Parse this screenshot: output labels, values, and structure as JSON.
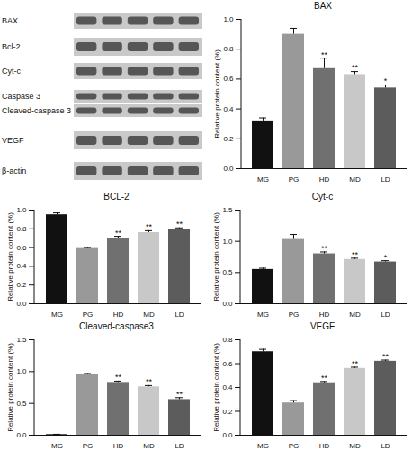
{
  "blot": {
    "labels": [
      "BAX",
      "Bcl-2",
      "Cyt-c",
      "Caspase 3",
      "Cleaved-caspase 3",
      "VEGF",
      "β-actin"
    ]
  },
  "chart_data": [
    {
      "type": "bar",
      "title": "BAX",
      "y_label": "Relative protein content (%)",
      "categories": [
        "MG",
        "PG",
        "HD",
        "MD",
        "LD"
      ],
      "values": [
        0.32,
        0.9,
        0.67,
        0.63,
        0.54
      ],
      "errors": [
        0.02,
        0.04,
        0.07,
        0.02,
        0.02
      ],
      "annotations": [
        null,
        null,
        "**",
        "**",
        "*"
      ],
      "colors": [
        "#111111",
        "#999999",
        "#707070",
        "#c8c8c8",
        "#5c5c5c"
      ],
      "ylim": [
        0,
        1.0
      ],
      "yticks": [
        {
          "value": 0,
          "label": "0.0"
        },
        {
          "value": 0.2,
          "label": "0.2"
        },
        {
          "value": 0.4,
          "label": "0.4"
        },
        {
          "value": 0.6,
          "label": "0.6"
        },
        {
          "value": 0.8,
          "label": "0.8"
        },
        {
          "value": 1.0,
          "label": "1.0"
        }
      ]
    },
    {
      "type": "bar",
      "title": "BCL-2",
      "y_label": "Relative protein content (%)",
      "categories": [
        "MG",
        "PG",
        "HD",
        "MD",
        "LD"
      ],
      "values": [
        0.95,
        0.59,
        0.7,
        0.76,
        0.79
      ],
      "errors": [
        0.02,
        0.01,
        0.02,
        0.02,
        0.02
      ],
      "annotations": [
        null,
        null,
        "**",
        "**",
        "**"
      ],
      "colors": [
        "#111111",
        "#999999",
        "#707070",
        "#c8c8c8",
        "#5c5c5c"
      ],
      "ylim": [
        0,
        1.0
      ],
      "yticks": [
        {
          "value": 0,
          "label": "0.0"
        },
        {
          "value": 0.2,
          "label": "0.2"
        },
        {
          "value": 0.4,
          "label": "0.4"
        },
        {
          "value": 0.6,
          "label": "0.6"
        },
        {
          "value": 0.8,
          "label": "0.8"
        },
        {
          "value": 1.0,
          "label": "1.0"
        }
      ]
    },
    {
      "type": "bar",
      "title": "Cyt-c",
      "y_label": "Relative protein content (%)",
      "categories": [
        "MG",
        "PG",
        "HD",
        "MD",
        "LD"
      ],
      "values": [
        0.55,
        1.03,
        0.8,
        0.71,
        0.67
      ],
      "errors": [
        0.02,
        0.08,
        0.03,
        0.02,
        0.02
      ],
      "annotations": [
        null,
        null,
        "**",
        "**",
        "*"
      ],
      "colors": [
        "#111111",
        "#999999",
        "#707070",
        "#c8c8c8",
        "#5c5c5c"
      ],
      "ylim": [
        0,
        1.5
      ],
      "yticks": [
        {
          "value": 0,
          "label": "0.0"
        },
        {
          "value": 0.5,
          "label": "0.5"
        },
        {
          "value": 1.0,
          "label": "1.0"
        },
        {
          "value": 1.5,
          "label": "1.5"
        }
      ]
    },
    {
      "type": "bar",
      "title": "Cleaved-caspase3",
      "y_label": "Relative protein content (%)",
      "categories": [
        "MG",
        "PG",
        "HD",
        "MD",
        "LD"
      ],
      "values": [
        0.01,
        0.95,
        0.83,
        0.76,
        0.56
      ],
      "errors": [
        0.005,
        0.02,
        0.02,
        0.02,
        0.03
      ],
      "annotations": [
        null,
        null,
        "**",
        "**",
        "**"
      ],
      "colors": [
        "#111111",
        "#999999",
        "#707070",
        "#c8c8c8",
        "#5c5c5c"
      ],
      "ylim": [
        0,
        1.5
      ],
      "yticks": [
        {
          "value": 0,
          "label": "0.0"
        },
        {
          "value": 0.5,
          "label": "0.5"
        },
        {
          "value": 1.0,
          "label": "1.0"
        },
        {
          "value": 1.5,
          "label": "1.5"
        }
      ]
    },
    {
      "type": "bar",
      "title": "VEGF",
      "y_label": "Relative protein content (%)",
      "categories": [
        "MG",
        "PG",
        "HD",
        "MD",
        "LD"
      ],
      "values": [
        0.7,
        0.27,
        0.44,
        0.56,
        0.62
      ],
      "errors": [
        0.02,
        0.02,
        0.01,
        0.01,
        0.01
      ],
      "annotations": [
        null,
        null,
        "**",
        "**",
        "**"
      ],
      "colors": [
        "#111111",
        "#999999",
        "#707070",
        "#c8c8c8",
        "#5c5c5c"
      ],
      "ylim": [
        0,
        0.8
      ],
      "yticks": [
        {
          "value": 0,
          "label": "0.0"
        },
        {
          "value": 0.2,
          "label": "0.2"
        },
        {
          "value": 0.4,
          "label": "0.4"
        },
        {
          "value": 0.6,
          "label": "0.6"
        },
        {
          "value": 0.8,
          "label": "0.8"
        }
      ]
    }
  ]
}
